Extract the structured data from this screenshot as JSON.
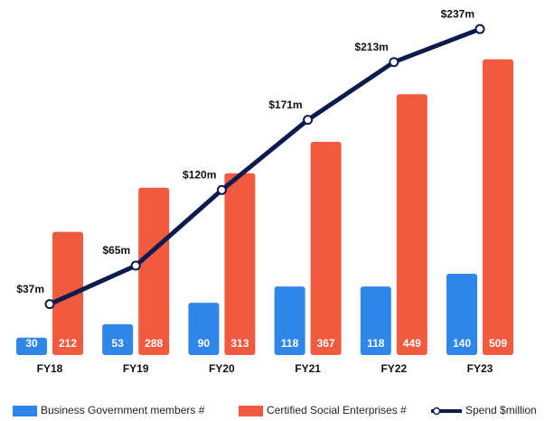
{
  "chart_data": {
    "type": "bar",
    "categories": [
      "FY18",
      "FY19",
      "FY20",
      "FY21",
      "FY22",
      "FY23"
    ],
    "series": [
      {
        "name": "Business Government members #",
        "color": "#2f86e8",
        "values": [
          30,
          53,
          90,
          118,
          118,
          140
        ]
      },
      {
        "name": "Certified Social Enterprises #",
        "color": "#f05a3e",
        "values": [
          212,
          288,
          313,
          367,
          449,
          509
        ]
      },
      {
        "name": "Spend $million",
        "color": "#0d1a4d",
        "type": "line",
        "axis": "y2",
        "values": [
          37,
          65,
          120,
          171,
          213,
          237
        ],
        "value_labels": [
          "$37m",
          "$65m",
          "$120m",
          "$171m",
          "$213m",
          "$237m"
        ]
      }
    ],
    "ylim": [
      0,
      580
    ],
    "y2lim": [
      0,
      245
    ],
    "legend": "bottom"
  }
}
